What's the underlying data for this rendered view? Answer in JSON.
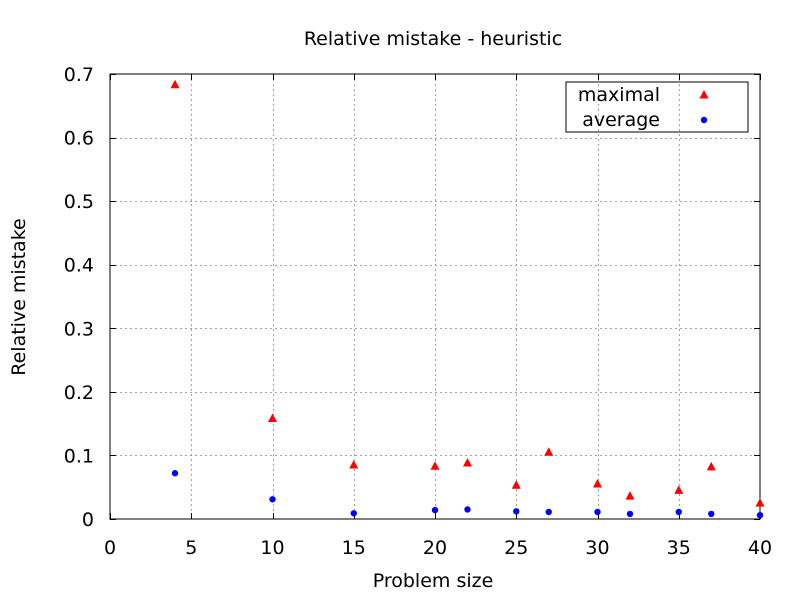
{
  "chart_data": {
    "type": "scatter",
    "title": "Relative mistake - heuristic",
    "xlabel": "Problem size",
    "ylabel": "Relative mistake",
    "xlim": [
      0,
      40
    ],
    "ylim": [
      0,
      0.7
    ],
    "xticks": [
      0,
      5,
      10,
      15,
      20,
      25,
      30,
      35,
      40
    ],
    "yticks": [
      0,
      0.1,
      0.2,
      0.3,
      0.4,
      0.5,
      0.6,
      0.7
    ],
    "grid": true,
    "legend_position": "top-right",
    "series": [
      {
        "name": "maximal",
        "marker": "triangle",
        "color": "#ff0000",
        "x": [
          4,
          10,
          15,
          20,
          22,
          25,
          27,
          30,
          32,
          35,
          37,
          40
        ],
        "y": [
          0.683,
          0.158,
          0.085,
          0.083,
          0.088,
          0.053,
          0.105,
          0.055,
          0.036,
          0.045,
          0.082,
          0.025
        ]
      },
      {
        "name": "average",
        "marker": "circle",
        "color": "#0000ff",
        "x": [
          4,
          10,
          15,
          20,
          22,
          25,
          27,
          30,
          32,
          35,
          37,
          40
        ],
        "y": [
          0.072,
          0.031,
          0.009,
          0.014,
          0.015,
          0.012,
          0.011,
          0.011,
          0.008,
          0.011,
          0.008,
          0.006
        ]
      }
    ]
  }
}
